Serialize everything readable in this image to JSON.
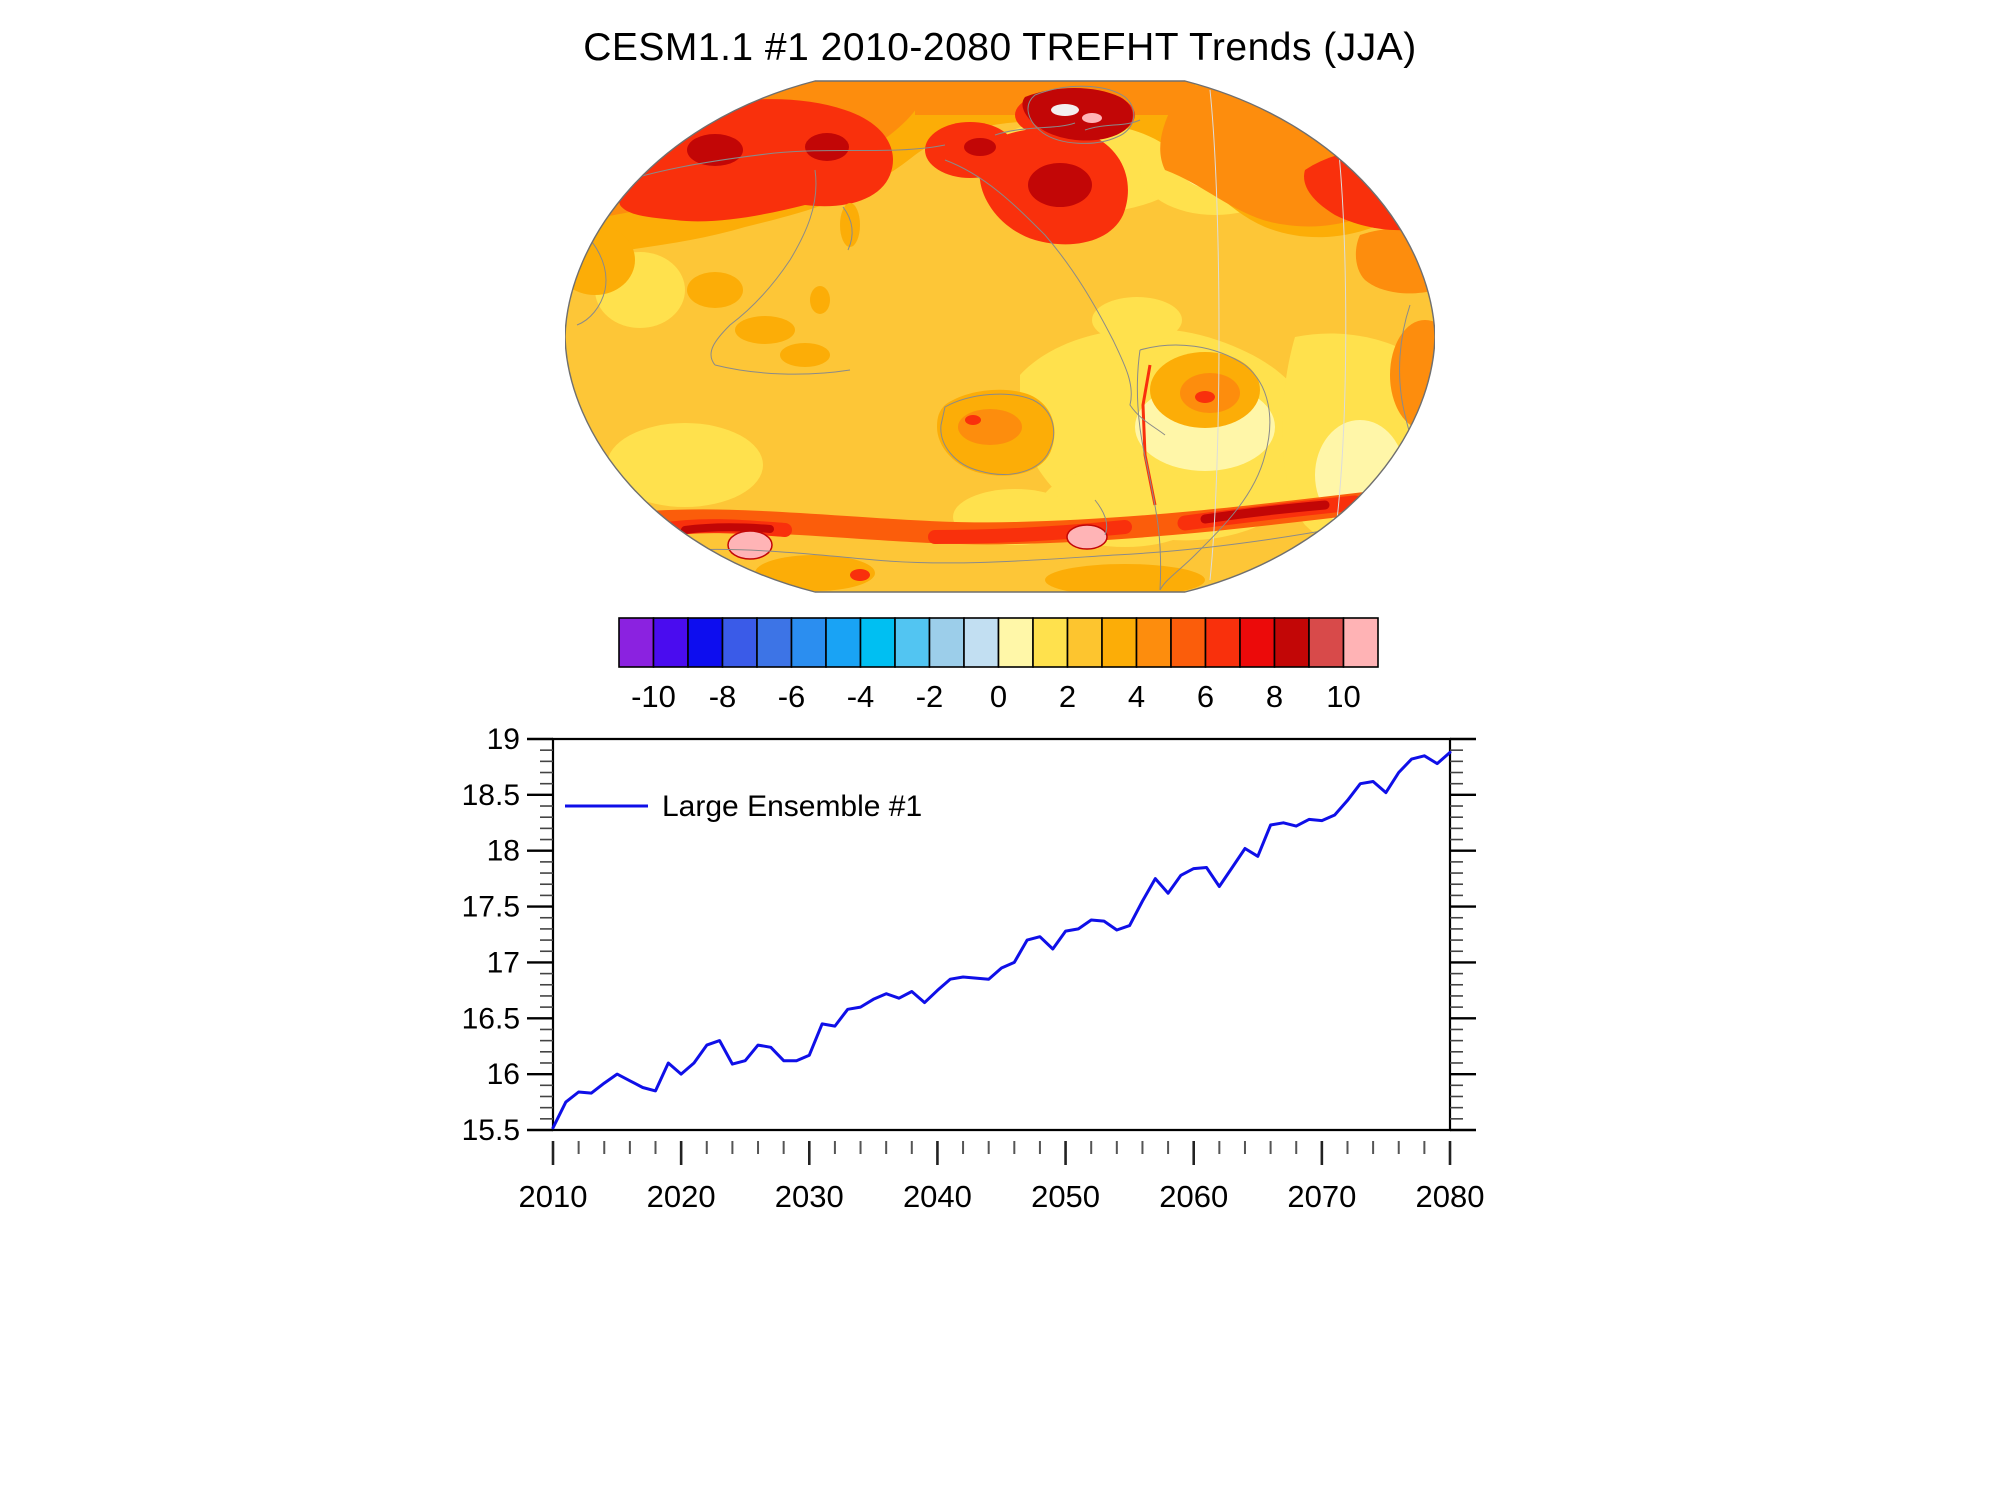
{
  "chart_data": [
    {
      "type": "heatmap",
      "title": "CESM1.1 #1 2010-2080 TREFHT Trends (JJA)",
      "map": {
        "projection": "global world map, Pacific-centered, elliptical (Winkel-style) outline",
        "units_implied": "temperature trend contour fill keyed to colorbar below",
        "hot_regions": "Siberia, Chukotka/Alaska, northern Canada, Greenland, northern Europe (5 to 9), Amazon and Australia (3 to 5), Southern Ocean band near Antarctica (6 to >10 with pink >10 patches)",
        "mild_regions": "most tropical/subtropical oceans (1 to 3), patches of 0 to 1 in south-central Pacific, North Atlantic and Southern Ocean"
      },
      "colorbar": {
        "tick_labels": [
          -10,
          -8,
          -6,
          -4,
          -2,
          0,
          2,
          4,
          6,
          8,
          10
        ],
        "colors": [
          "#8B22E0",
          "#4A0CEF",
          "#0D0DEF",
          "#3A5BE8",
          "#3D74E6",
          "#2B8EF0",
          "#19A3F5",
          "#00BFF2",
          "#52C5F2",
          "#9CCEEA",
          "#C2DFF2",
          "#FFF7A8",
          "#FFE14D",
          "#FDC52F",
          "#FCAD07",
          "#FD8D0D",
          "#FB5D0B",
          "#F9300C",
          "#EC0A0A",
          "#C20606",
          "#D84A4A",
          "#FFB3B5"
        ]
      }
    },
    {
      "type": "line",
      "xlim": [
        2010,
        2080
      ],
      "ylim": [
        15.5,
        19
      ],
      "xticks": [
        2010,
        2020,
        2030,
        2040,
        2050,
        2060,
        2070,
        2080
      ],
      "yticks": [
        15.5,
        16,
        16.5,
        17,
        17.5,
        18,
        18.5,
        19
      ],
      "x_minor_step": 2,
      "y_minor_step": 0.1,
      "grid": false,
      "legend_position": "upper-left-inside",
      "series": [
        {
          "name": "Large Ensemble #1",
          "color": "#0F0FE8",
          "years": [
            2010,
            2011,
            2012,
            2013,
            2014,
            2015,
            2016,
            2017,
            2018,
            2019,
            2020,
            2021,
            2022,
            2023,
            2024,
            2025,
            2026,
            2027,
            2028,
            2029,
            2030,
            2031,
            2032,
            2033,
            2034,
            2035,
            2036,
            2037,
            2038,
            2039,
            2040,
            2041,
            2042,
            2043,
            2044,
            2045,
            2046,
            2047,
            2048,
            2049,
            2050,
            2051,
            2052,
            2053,
            2054,
            2055,
            2056,
            2057,
            2058,
            2059,
            2060,
            2061,
            2062,
            2063,
            2064,
            2065,
            2066,
            2067,
            2068,
            2069,
            2070,
            2071,
            2072,
            2073,
            2074,
            2075,
            2076,
            2077,
            2078,
            2079,
            2080
          ],
          "values": [
            15.52,
            15.75,
            15.84,
            15.83,
            15.92,
            16.0,
            15.94,
            15.88,
            15.85,
            16.1,
            16.0,
            16.1,
            16.26,
            16.3,
            16.09,
            16.12,
            16.26,
            16.24,
            16.12,
            16.12,
            16.17,
            16.45,
            16.43,
            16.58,
            16.6,
            16.67,
            16.72,
            16.68,
            16.74,
            16.64,
            16.75,
            16.85,
            16.87,
            16.86,
            16.85,
            16.95,
            17.0,
            17.2,
            17.23,
            17.12,
            17.28,
            17.3,
            17.38,
            17.37,
            17.29,
            17.33,
            17.55,
            17.75,
            17.62,
            17.78,
            17.84,
            17.85,
            17.68,
            17.85,
            18.02,
            17.95,
            18.23,
            18.25,
            18.22,
            18.28,
            18.27,
            18.32,
            18.45,
            18.6,
            18.62,
            18.52,
            18.7,
            18.82,
            18.85,
            18.78,
            18.88
          ]
        }
      ]
    }
  ]
}
